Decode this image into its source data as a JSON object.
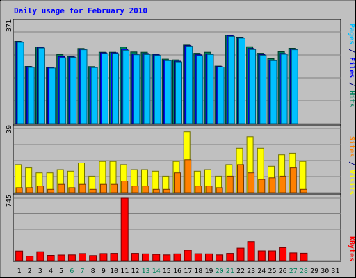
{
  "chart_data": {
    "type": "bar",
    "title": "Daily usage for February 2010",
    "categories": [
      "1",
      "2",
      "3",
      "4",
      "5",
      "6",
      "7",
      "8",
      "9",
      "10",
      "11",
      "12",
      "13",
      "14",
      "15",
      "16",
      "17",
      "18",
      "19",
      "20",
      "21",
      "22",
      "23",
      "24",
      "25",
      "26",
      "27",
      "28",
      "29",
      "30",
      "31"
    ],
    "weekend_days": [
      6,
      7,
      13,
      14,
      20,
      21,
      27,
      28
    ],
    "panels": [
      {
        "name": "pages-files-hits",
        "ymax_label": "371",
        "ymax": 371,
        "ylabel_parts": [
          {
            "text": "Pages",
            "color": "#00c0ff"
          },
          {
            "text": " / ",
            "color": "#000080"
          },
          {
            "text": "Files",
            "color": "#0000ff"
          },
          {
            "text": " / ",
            "color": "#000080"
          },
          {
            "text": "Hits",
            "color": "#00805c"
          }
        ],
        "series": [
          {
            "name": "Hits",
            "color": "#00805c",
            "values": [
              333,
              232,
              310,
              229,
              280,
              273,
              304,
              231,
              289,
              289,
              310,
              290,
              289,
              282,
              261,
              258,
              318,
              285,
              289,
              233,
              358,
              350,
              311,
              285,
              263,
              291,
              305,
              0,
              0,
              0,
              0
            ]
          },
          {
            "name": "Files",
            "color": "#0000ff",
            "values": [
              331,
              230,
              308,
              227,
              272,
              270,
              301,
              229,
              287,
              287,
              302,
              282,
              284,
              279,
              257,
              253,
              316,
              279,
              282,
              231,
              356,
              348,
              304,
              280,
              257,
              284,
              302,
              0,
              0,
              0,
              0
            ]
          },
          {
            "name": "Pages",
            "color": "#00c0ff",
            "values": [
              329,
              228,
              306,
              225,
              267,
              268,
              299,
              227,
              284,
              284,
              297,
              279,
              280,
              276,
              255,
              250,
              313,
              275,
              280,
              229,
              353,
              346,
              300,
              277,
              255,
              281,
              299,
              0,
              0,
              0,
              0
            ]
          }
        ]
      },
      {
        "name": "visits-sites",
        "ymax_label": "39",
        "ymax": 39,
        "ylabel_parts": [
          {
            "text": "Sites",
            "color": "#ff8000"
          },
          {
            "text": " / ",
            "color": "#000080"
          },
          {
            "text": "Visits",
            "color": "#ffff00"
          }
        ],
        "series": [
          {
            "name": "Visits",
            "color": "#ffff00",
            "values": [
              17,
              15,
              12,
              12,
              14,
              13,
              18,
              10,
              19,
              19,
              17,
              14,
              14,
              13,
              10,
              19,
              37,
              13,
              14,
              10,
              17,
              27,
              34,
              27,
              16,
              23,
              24,
              19,
              0,
              0,
              0
            ]
          },
          {
            "name": "Sites",
            "color": "#ff8000",
            "values": [
              3,
              3,
              4,
              2,
              5,
              3,
              5,
              2,
              5,
              5,
              7,
              4,
              4,
              2,
              2,
              12,
              20,
              4,
              4,
              3,
              10,
              17,
              12,
              8,
              9,
              10,
              15,
              2,
              0,
              0,
              0
            ]
          }
        ]
      },
      {
        "name": "kbytes",
        "ymax_label": "745",
        "ymax": 745,
        "ylabel_parts": [
          {
            "text": "KBytes",
            "color": "#ff0000"
          }
        ],
        "series": [
          {
            "name": "KBytes",
            "color": "#ff0000",
            "values": [
              114,
              52,
              106,
              62,
              66,
              68,
              84,
              60,
              84,
              86,
              745,
              86,
              80,
              74,
              68,
              80,
              124,
              82,
              80,
              68,
              86,
              148,
              226,
              116,
              116,
              154,
              92,
              88,
              0,
              0,
              0
            ]
          }
        ]
      }
    ],
    "grid": true
  }
}
